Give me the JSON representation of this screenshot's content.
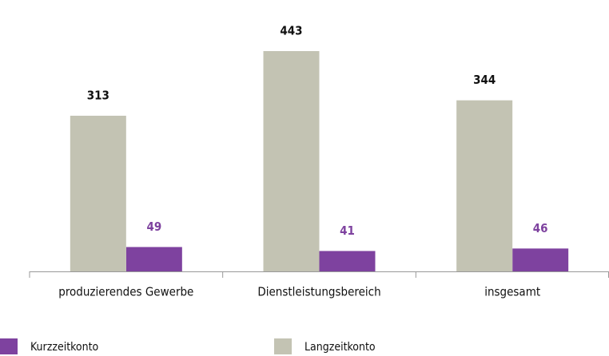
{
  "chart_data": {
    "type": "bar",
    "categories": [
      "produzierendes Gewerbe",
      "Dienstleistungsbereich",
      "insgesamt"
    ],
    "series": [
      {
        "name": "Kurzzeitkonto",
        "color": "#7e429f",
        "values": [
          49,
          41,
          46
        ]
      },
      {
        "name": "Langzeitkonto",
        "color": "#c3c3b3",
        "values": [
          313,
          443,
          344
        ]
      }
    ]
  }
}
